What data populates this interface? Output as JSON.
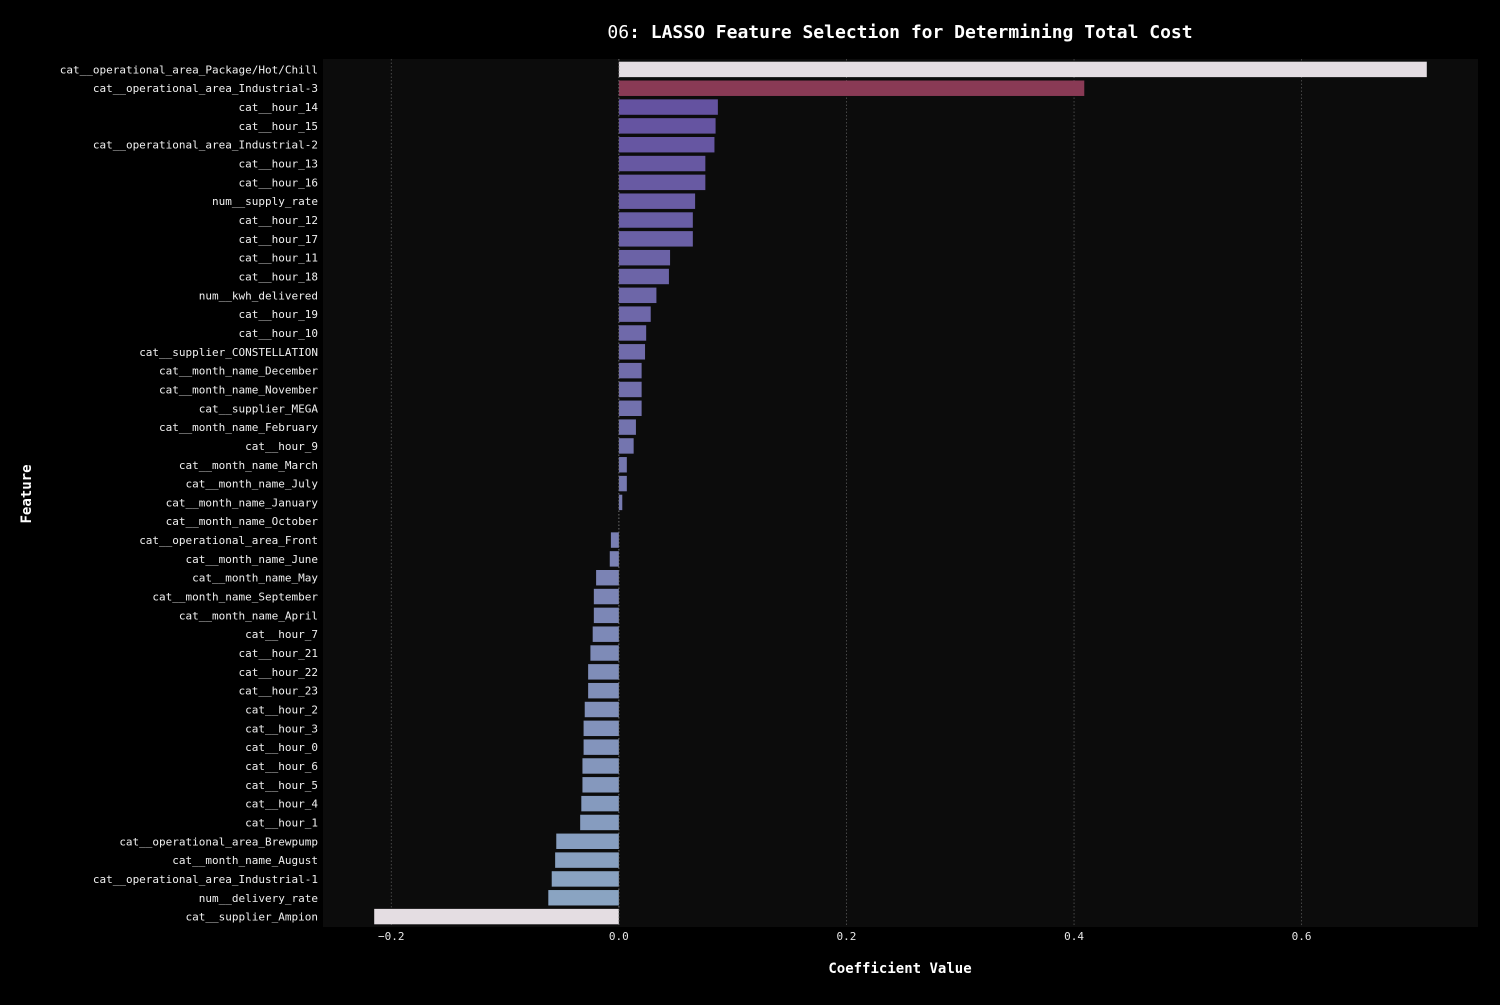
{
  "chart_data": {
    "type": "bar",
    "orientation": "horizontal",
    "title_prefix": "06",
    "title": ": LASSO Feature Selection for Determining Total Cost",
    "xlabel": "Coefficient Value",
    "ylabel": "Feature",
    "xlim": [
      -0.26,
      0.755
    ],
    "xticks": [
      -0.2,
      0.0,
      0.2,
      0.4,
      0.6
    ],
    "xtick_labels": [
      "−0.2",
      "0.0",
      "0.2",
      "0.4",
      "0.6"
    ],
    "grid": "x-dotted",
    "colors": {
      "background": "#000000",
      "plot_background": "#0c0c0c",
      "grid": "#555555",
      "highlight": "#e4dde2",
      "second": "#893a55",
      "purple": "#6452a0",
      "steel": "#8aa4c2"
    },
    "categories": [
      "cat__operational_area_Package/Hot/Chill",
      "cat__operational_area_Industrial-3",
      "cat__hour_14",
      "cat__hour_15",
      "cat__operational_area_Industrial-2",
      "cat__hour_13",
      "cat__hour_16",
      "num__supply_rate",
      "cat__hour_12",
      "cat__hour_17",
      "cat__hour_11",
      "cat__hour_18",
      "num__kwh_delivered",
      "cat__hour_19",
      "cat__hour_10",
      "cat__supplier_CONSTELLATION",
      "cat__month_name_December",
      "cat__month_name_November",
      "cat__supplier_MEGA",
      "cat__month_name_February",
      "cat__hour_9",
      "cat__month_name_March",
      "cat__month_name_July",
      "cat__month_name_January",
      "cat__month_name_October",
      "cat__operational_area_Front",
      "cat__month_name_June",
      "cat__month_name_May",
      "cat__month_name_September",
      "cat__month_name_April",
      "cat__hour_7",
      "cat__hour_21",
      "cat__hour_22",
      "cat__hour_23",
      "cat__hour_2",
      "cat__hour_3",
      "cat__hour_0",
      "cat__hour_6",
      "cat__hour_5",
      "cat__hour_4",
      "cat__hour_1",
      "cat__operational_area_Brewpump",
      "cat__month_name_August",
      "cat__operational_area_Industrial-1",
      "num__delivery_rate",
      "cat__supplier_Ampion"
    ],
    "values": [
      0.71,
      0.409,
      0.087,
      0.085,
      0.084,
      0.076,
      0.076,
      0.067,
      0.065,
      0.065,
      0.045,
      0.044,
      0.033,
      0.028,
      0.024,
      0.023,
      0.02,
      0.02,
      0.02,
      0.015,
      0.013,
      0.007,
      0.007,
      0.003,
      0.0,
      -0.007,
      -0.008,
      -0.02,
      -0.022,
      -0.022,
      -0.023,
      -0.025,
      -0.027,
      -0.027,
      -0.03,
      -0.031,
      -0.031,
      -0.032,
      -0.032,
      -0.033,
      -0.034,
      -0.055,
      -0.056,
      -0.059,
      -0.062,
      -0.215
    ]
  }
}
